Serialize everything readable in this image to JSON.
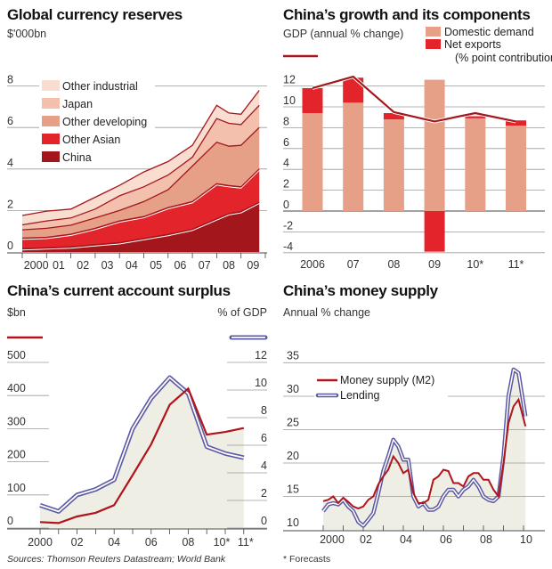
{
  "chart_data": [
    {
      "type": "area",
      "stacked": true,
      "title": "Global currency reserves",
      "ylabel": "$'000bn",
      "ylim": [
        0,
        8
      ],
      "yticks": [
        "0",
        "2",
        "4",
        "6",
        "8"
      ],
      "xtick_labels": [
        "2000",
        "01",
        "02",
        "03",
        "04",
        "05",
        "06",
        "07",
        "08",
        "09"
      ],
      "grid": true,
      "legend_position": "top-left",
      "x": [
        2000,
        2001,
        2002,
        2003,
        2004,
        2005,
        2006,
        2007,
        2008,
        2008.5,
        2009,
        2009.75
      ],
      "series": [
        {
          "name": "China",
          "color": "#a3161b",
          "values": [
            0.16,
            0.2,
            0.25,
            0.35,
            0.45,
            0.65,
            0.85,
            1.1,
            1.6,
            1.85,
            1.95,
            2.4
          ]
        },
        {
          "name": "Other Asian",
          "color": "#e3242b",
          "values": [
            0.51,
            0.51,
            0.61,
            0.79,
            1.05,
            1.06,
            1.29,
            1.33,
            1.69,
            1.35,
            1.19,
            1.6
          ]
        },
        {
          "name": "Other developing",
          "color": "#e6a088",
          "values": [
            0.4,
            0.43,
            0.43,
            0.5,
            0.5,
            0.72,
            0.86,
            1.71,
            2.0,
            1.9,
            2.0,
            2.0
          ]
        },
        {
          "name": "Japan",
          "color": "#f2c0ad",
          "values": [
            0.24,
            0.36,
            0.35,
            0.43,
            0.71,
            0.71,
            0.71,
            0.43,
            1.14,
            1.1,
            1.0,
            1.07
          ]
        },
        {
          "name": "Other industrial",
          "color": "#f8ddd0",
          "values": [
            0.45,
            0.47,
            0.43,
            0.57,
            0.5,
            0.72,
            0.65,
            0.57,
            0.64,
            0.5,
            0.5,
            0.72
          ]
        }
      ]
    },
    {
      "type": "bar",
      "stacked": true,
      "title": "China’s growth and its components",
      "subtitle": "GDP (annual % change)",
      "legend_note": "(% point contribution)",
      "ylim": [
        -4,
        12
      ],
      "yticks": [
        "-4",
        "-2",
        "0",
        "2",
        "4",
        "6",
        "8",
        "10",
        "12"
      ],
      "categories": [
        "2006",
        "07",
        "08",
        "09",
        "10*",
        "11*"
      ],
      "grid": true,
      "legend_position": "top-right",
      "series": [
        {
          "name": "Domestic demand",
          "color": "#e6a088",
          "values": [
            9.4,
            10.4,
            8.8,
            12.6,
            8.9,
            8.2
          ]
        },
        {
          "name": "Net exports",
          "color": "#e3242b",
          "values": [
            2.4,
            2.4,
            0.6,
            -3.9,
            0.2,
            0.5
          ]
        }
      ],
      "line": {
        "name": "GDP",
        "color": "#a3161b",
        "values": [
          11.8,
          12.9,
          9.5,
          8.6,
          9.4,
          8.6
        ]
      }
    },
    {
      "type": "line",
      "title": "China’s current account surplus",
      "ylabel_left": "$bn",
      "ylabel_right": "% of GDP",
      "ylim_left": [
        0,
        500
      ],
      "ylim_right": [
        0,
        12
      ],
      "yticks_left": [
        "0",
        "100",
        "200",
        "300",
        "400",
        "500"
      ],
      "yticks_right": [
        "0",
        "2",
        "4",
        "6",
        "8",
        "10",
        "12"
      ],
      "x": [
        2000,
        2001,
        2002,
        2003,
        2004,
        2005,
        2006,
        2007,
        2008,
        2009,
        2010,
        2011
      ],
      "xtick_labels": [
        "2000",
        "02",
        "04",
        "06",
        "08",
        "10*",
        "11*"
      ],
      "xtick_positions": [
        2000,
        2002,
        2004,
        2006,
        2008,
        2010,
        2011
      ],
      "series": [
        {
          "axis": "left",
          "color": "#b0141c",
          "values": [
            18,
            15,
            35,
            46,
            69,
            160,
            253,
            372,
            421,
            282,
            290,
            302
          ]
        },
        {
          "axis": "right",
          "color": "#5b58a3",
          "values": [
            1.65,
            1.2,
            2.4,
            2.8,
            3.5,
            7.2,
            9.4,
            10.9,
            9.75,
            5.9,
            5.4,
            5.1
          ]
        }
      ]
    },
    {
      "type": "line",
      "title": "China’s money supply",
      "ylabel": "Annual % change",
      "ylim": [
        10,
        35
      ],
      "yticks": [
        "10",
        "15",
        "20",
        "25",
        "30",
        "35"
      ],
      "xtick_labels": [
        "2000",
        "02",
        "04",
        "06",
        "08",
        "10"
      ],
      "xtick_positions": [
        2000,
        2002,
        2004,
        2006,
        2008,
        2010
      ],
      "grid": true,
      "legend_position": "top-left",
      "x": [
        2000,
        2000.25,
        2000.5,
        2000.75,
        2001,
        2001.25,
        2001.5,
        2001.75,
        2002,
        2002.25,
        2002.5,
        2002.75,
        2003,
        2003.25,
        2003.5,
        2003.75,
        2004,
        2004.25,
        2004.5,
        2004.75,
        2005,
        2005.25,
        2005.5,
        2005.75,
        2006,
        2006.25,
        2006.5,
        2006.75,
        2007,
        2007.25,
        2007.5,
        2007.75,
        2008,
        2008.25,
        2008.5,
        2008.75,
        2009,
        2009.25,
        2009.5,
        2009.75,
        2010.1
      ],
      "series": [
        {
          "name": "Money supply (M2)",
          "color": "#b0141c",
          "values": [
            14.3,
            14.5,
            15.0,
            14.0,
            14.8,
            14.2,
            13.5,
            13.2,
            13.5,
            14.5,
            15.0,
            16.8,
            18.0,
            19.0,
            21.0,
            20.0,
            18.5,
            19.0,
            15.5,
            14.0,
            14.0,
            14.5,
            17.5,
            18.0,
            19.0,
            18.8,
            17.0,
            17.0,
            16.5,
            18.0,
            18.5,
            18.5,
            17.5,
            17.5,
            16.0,
            15.0,
            20.0,
            26.0,
            28.5,
            29.5,
            25.5
          ]
        },
        {
          "name": "Lending",
          "color": "#5b58a3",
          "values": [
            12.8,
            13.8,
            14.0,
            13.8,
            14.5,
            13.5,
            12.8,
            11.2,
            10.6,
            11.5,
            12.5,
            15.5,
            18.8,
            21.0,
            23.5,
            22.5,
            20.5,
            20.5,
            15.0,
            13.5,
            14.0,
            13.0,
            13.0,
            13.5,
            15.0,
            16.0,
            16.0,
            15.0,
            16.0,
            16.5,
            17.5,
            16.5,
            15.0,
            14.5,
            14.3,
            15.0,
            21.0,
            30.0,
            34.0,
            33.5,
            27.0
          ]
        }
      ]
    }
  ],
  "footer": {
    "sources": "Sources: Thomson Reuters Datastream; World Bank",
    "forecasts_note": "* Forecasts"
  },
  "colors": {
    "fill": "#efeee4",
    "grid": "#9a9a9a",
    "axis": "#444444"
  }
}
